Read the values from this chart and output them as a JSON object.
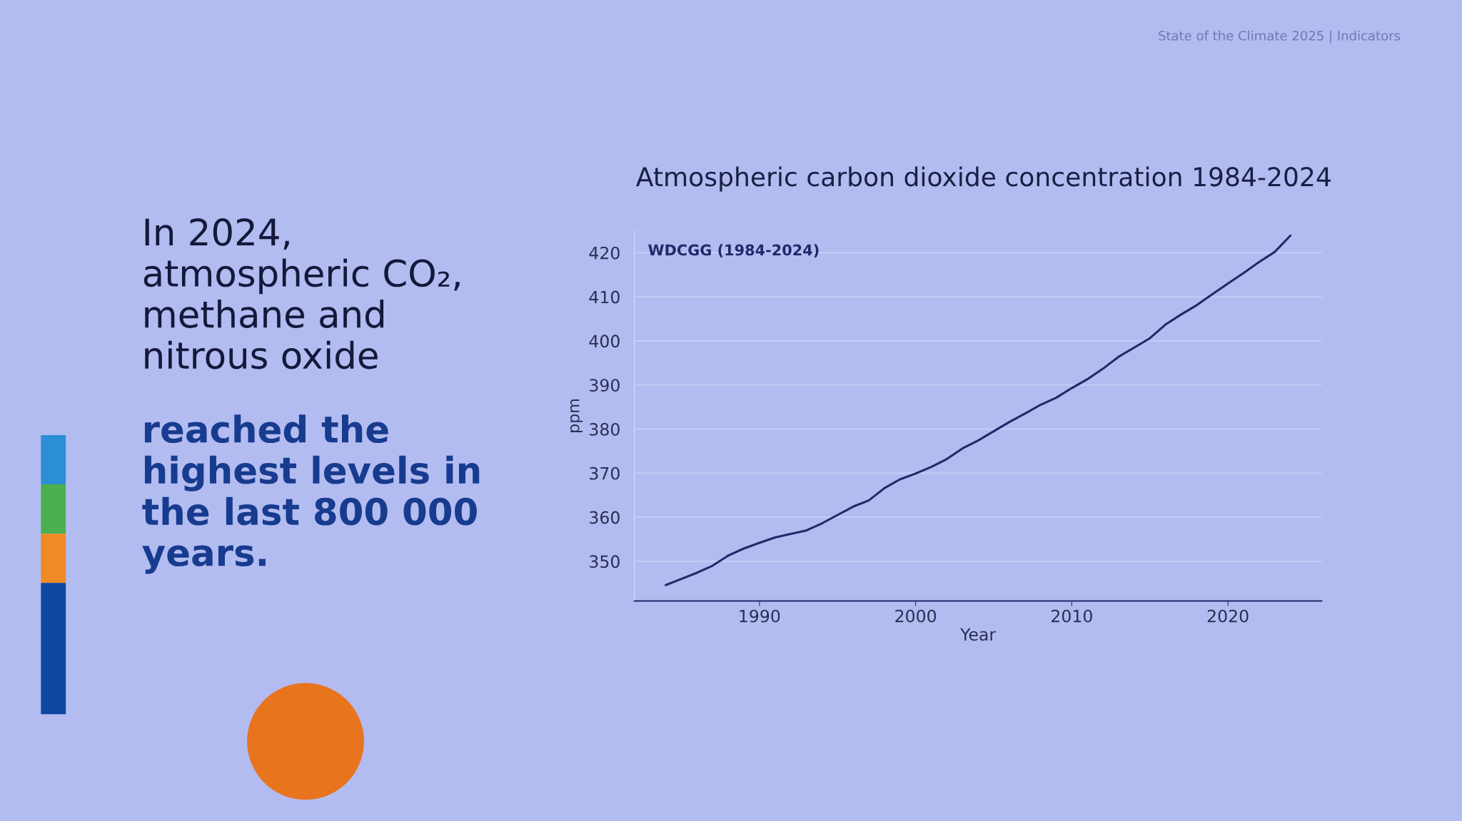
{
  "chart_data": {
    "type": "line",
    "title": "Atmospheric carbon dioxide concentration 1984-2024",
    "xlabel": "Year",
    "ylabel": "ppm",
    "x": [
      1984,
      1985,
      1986,
      1987,
      1988,
      1989,
      1990,
      1991,
      1992,
      1993,
      1994,
      1995,
      1996,
      1997,
      1998,
      1999,
      2000,
      2001,
      2002,
      2003,
      2004,
      2005,
      2006,
      2007,
      2008,
      2009,
      2010,
      2011,
      2012,
      2013,
      2014,
      2015,
      2016,
      2017,
      2018,
      2019,
      2020,
      2021,
      2022,
      2023,
      2024
    ],
    "series": [
      {
        "name": "WDCGG (1984-2024)",
        "color": "#1f2a6b",
        "values": [
          344.6,
          346.0,
          347.4,
          349.0,
          351.3,
          352.9,
          354.2,
          355.4,
          356.2,
          357.0,
          358.6,
          360.5,
          362.4,
          363.8,
          366.6,
          368.6,
          369.9,
          371.4,
          373.2,
          375.6,
          377.4,
          379.5,
          381.6,
          383.5,
          385.5,
          387.1,
          389.3,
          391.3,
          393.7,
          396.4,
          398.5,
          400.6,
          403.7,
          406.0,
          408.1,
          410.6,
          413.0,
          415.4,
          417.9,
          420.2,
          423.9
        ]
      }
    ],
    "xlim": [
      1982,
      2026
    ],
    "xticks": [
      1990,
      2000,
      2010,
      2020
    ],
    "ylim": [
      341,
      425
    ],
    "yticks": [
      350,
      360,
      370,
      380,
      390,
      400,
      410,
      420
    ],
    "grid": "y",
    "legend": "top left",
    "marker": "none",
    "line_style": "solid",
    "annotations": [
      "State of the Climate 2025 | Indicators",
      "In 2024,\natmospheric CO₂,\nmethane and\nnitrous oxide",
      "reached the\nhighest levels in\nthe last 800 000\nyears."
    ]
  }
}
